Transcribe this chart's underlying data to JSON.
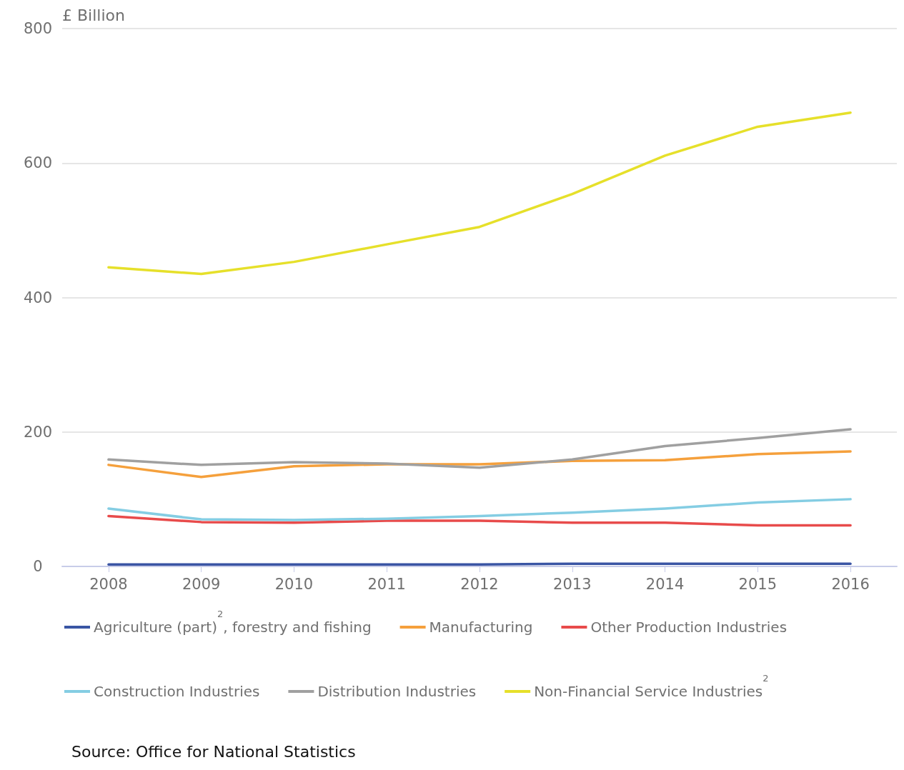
{
  "chart_data": {
    "type": "line",
    "ylabel": "£ Billion",
    "categories": [
      "2008",
      "2009",
      "2010",
      "2011",
      "2012",
      "2013",
      "2014",
      "2015",
      "2016"
    ],
    "series": [
      {
        "name": "Agriculture (part)$^{2}$, forestry and fishing",
        "color": "#3a55a4",
        "values": [
          3,
          3,
          3,
          3,
          3,
          4,
          4,
          4,
          4
        ]
      },
      {
        "name": "Manufacturing",
        "color": "#f5a03c",
        "values": [
          151,
          133,
          149,
          152,
          152,
          157,
          158,
          167,
          171
        ]
      },
      {
        "name": "Other Production Industries",
        "color": "#e84b4b",
        "values": [
          75,
          66,
          65,
          68,
          68,
          65,
          65,
          61,
          61
        ]
      },
      {
        "name": "Construction Industries",
        "color": "#84cde3",
        "values": [
          86,
          70,
          69,
          71,
          75,
          80,
          86,
          95,
          100
        ]
      },
      {
        "name": "Distribution Industries",
        "color": "#a0a0a0",
        "values": [
          159,
          151,
          155,
          153,
          147,
          159,
          179,
          191,
          204
        ]
      },
      {
        "name": "Non-Financial Service Industries$^{2}$",
        "color": "#e6e02a",
        "values": [
          445,
          435,
          453,
          479,
          505,
          554,
          611,
          654,
          675
        ]
      }
    ],
    "ylim": [
      0,
      800
    ],
    "yticks": [
      0,
      200,
      400,
      600,
      800
    ],
    "grid": "y",
    "legend": "bottom",
    "marker": "none",
    "line_style": "solid",
    "annotations": [
      "Source: Office for National Statistics"
    ]
  }
}
